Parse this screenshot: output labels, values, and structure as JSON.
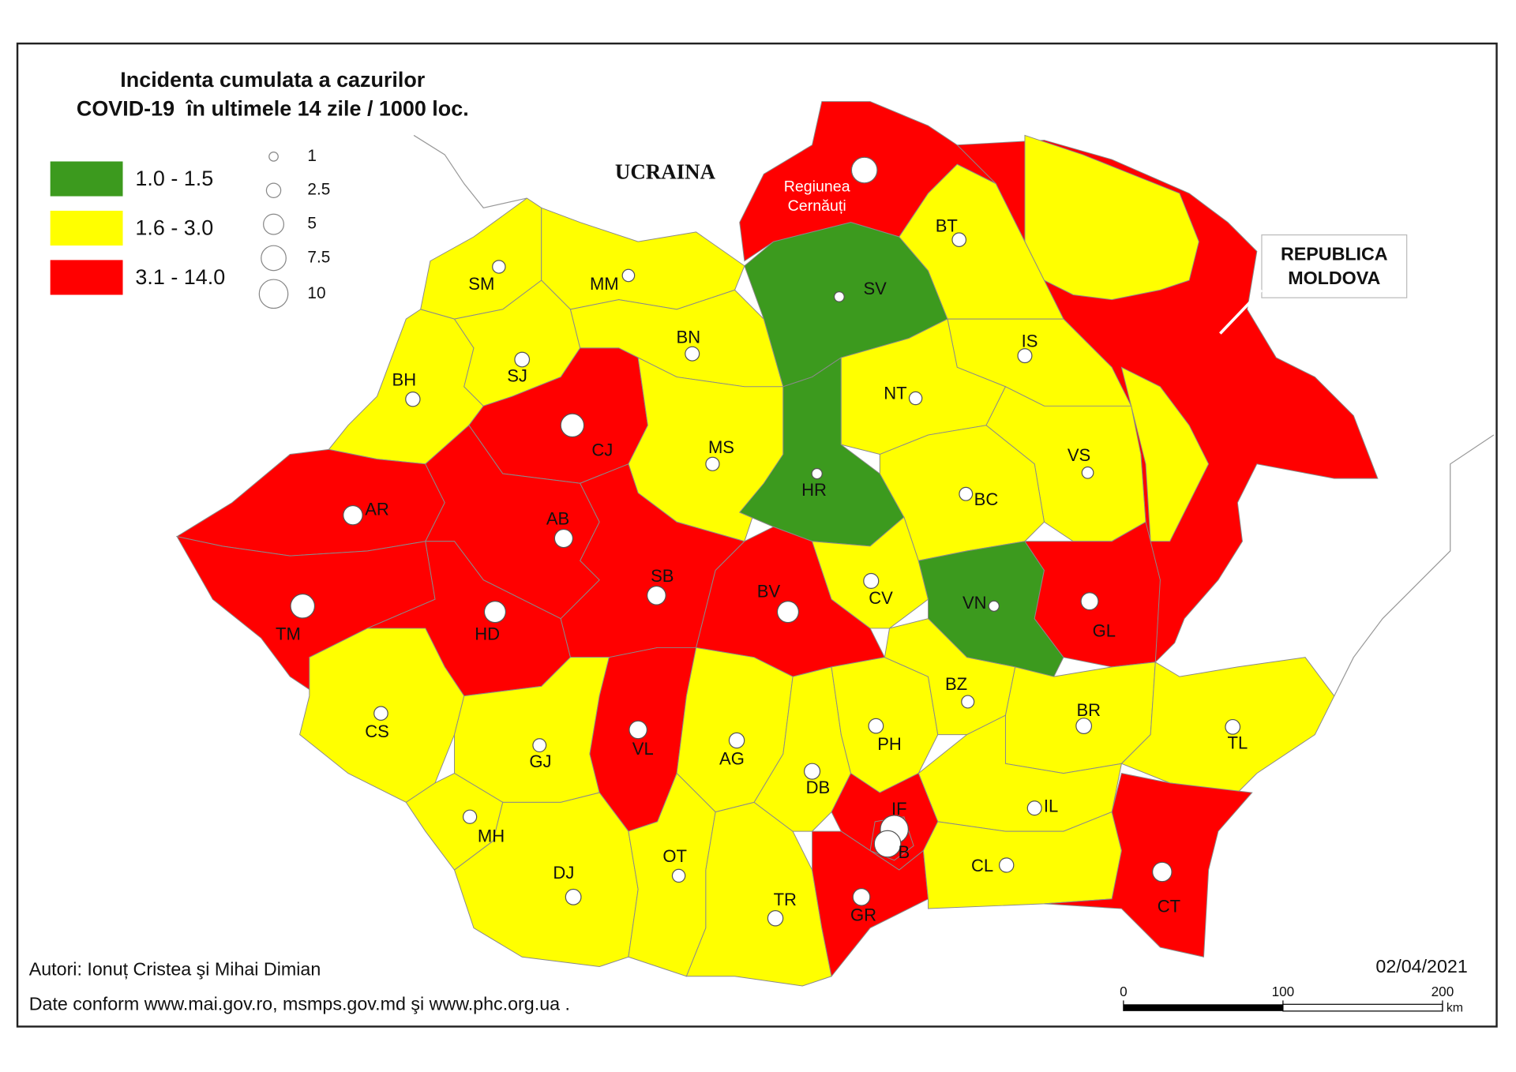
{
  "title": [
    "Incidenta cumulata a cazurilor",
    "COVID-19  în ultimele 14 zile / 1000 loc."
  ],
  "legend": {
    "classes": [
      {
        "label": "1.0 - 1.5",
        "color": "#3c9a1e"
      },
      {
        "label": "1.6 - 3.0",
        "color": "#ffff00"
      },
      {
        "label": "3.1 - 14.0",
        "color": "#ff0000"
      }
    ],
    "sizes": [
      1,
      2.5,
      5,
      7.5,
      10
    ]
  },
  "countries": {
    "ukraine": "UCRAINA",
    "moldova": [
      "REPUBLICA",
      "MOLDOVA"
    ]
  },
  "cernauti": {
    "label": [
      "Regiunea",
      "Cernăuți"
    ],
    "value": 8,
    "color": "#ff0000"
  },
  "regions": [
    {
      "label": "SM",
      "value": 2.0,
      "color": "#ffff00"
    },
    {
      "label": "MM",
      "value": 1.8,
      "color": "#ffff00"
    },
    {
      "label": "BH",
      "value": 2.5,
      "color": "#ffff00"
    },
    {
      "label": "SJ",
      "value": 2.6,
      "color": "#ffff00"
    },
    {
      "label": "BN",
      "value": 2.4,
      "color": "#ffff00"
    },
    {
      "label": "CJ",
      "value": 6.5,
      "color": "#ff0000"
    },
    {
      "label": "MS",
      "value": 2.2,
      "color": "#ffff00"
    },
    {
      "label": "SV",
      "value": 1.2,
      "color": "#3c9a1e"
    },
    {
      "label": "HR",
      "value": 1.3,
      "color": "#3c9a1e"
    },
    {
      "label": "BT",
      "value": 2.3,
      "color": "#ffff00"
    },
    {
      "label": "IS",
      "value": 2.4,
      "color": "#ffff00"
    },
    {
      "label": "NT",
      "value": 2.0,
      "color": "#ffff00"
    },
    {
      "label": "VS",
      "value": 1.6,
      "color": "#ffff00"
    },
    {
      "label": "BC",
      "value": 2.1,
      "color": "#ffff00"
    },
    {
      "label": "AR",
      "value": 4.5,
      "color": "#ff0000"
    },
    {
      "label": "AB",
      "value": 4.0,
      "color": "#ff0000"
    },
    {
      "label": "TM",
      "value": 7.0,
      "color": "#ff0000"
    },
    {
      "label": "HD",
      "value": 5.5,
      "color": "#ff0000"
    },
    {
      "label": "SB",
      "value": 4.2,
      "color": "#ff0000"
    },
    {
      "label": "BV",
      "value": 5.5,
      "color": "#ff0000"
    },
    {
      "label": "CV",
      "value": 2.7,
      "color": "#ffff00"
    },
    {
      "label": "VN",
      "value": 1.3,
      "color": "#3c9a1e"
    },
    {
      "label": "GL",
      "value": 3.6,
      "color": "#ff0000"
    },
    {
      "label": "CS",
      "value": 2.3,
      "color": "#ffff00"
    },
    {
      "label": "GJ",
      "value": 2.1,
      "color": "#ffff00"
    },
    {
      "label": "VL",
      "value": 3.8,
      "color": "#ff0000"
    },
    {
      "label": "AG",
      "value": 2.8,
      "color": "#ffff00"
    },
    {
      "label": "MH",
      "value": 2.2,
      "color": "#ffff00"
    },
    {
      "label": "DJ",
      "value": 2.9,
      "color": "#ffff00"
    },
    {
      "label": "OT",
      "value": 2.0,
      "color": "#ffff00"
    },
    {
      "label": "TR",
      "value": 2.8,
      "color": "#ffff00"
    },
    {
      "label": "DB",
      "value": 3.0,
      "color": "#ffff00"
    },
    {
      "label": "PH",
      "value": 2.6,
      "color": "#ffff00"
    },
    {
      "label": "BZ",
      "value": 1.9,
      "color": "#ffff00"
    },
    {
      "label": "BR",
      "value": 2.9,
      "color": "#ffff00"
    },
    {
      "label": "TL",
      "value": 2.6,
      "color": "#ffff00"
    },
    {
      "label": "IL",
      "value": 2.4,
      "color": "#ffff00"
    },
    {
      "label": "IF",
      "value": 9.5,
      "color": "#ff0000"
    },
    {
      "label": "B",
      "value": 8.5,
      "color": "#ff0000"
    },
    {
      "label": "GR",
      "value": 3.5,
      "color": "#ff0000"
    },
    {
      "label": "CL",
      "value": 2.5,
      "color": "#ffff00"
    },
    {
      "label": "CT",
      "value": 4.5,
      "color": "#ff0000"
    }
  ],
  "footer": {
    "authors": "Autori: Ionuț Cristea şi Mihai Dimian",
    "source": "Date conform www.mai.gov.ro, msmps.gov.md şi www.phc.org.ua .",
    "date": "02/04/2021"
  },
  "scale_bar": {
    "ticks": [
      0,
      100,
      200
    ],
    "unit": "km"
  }
}
